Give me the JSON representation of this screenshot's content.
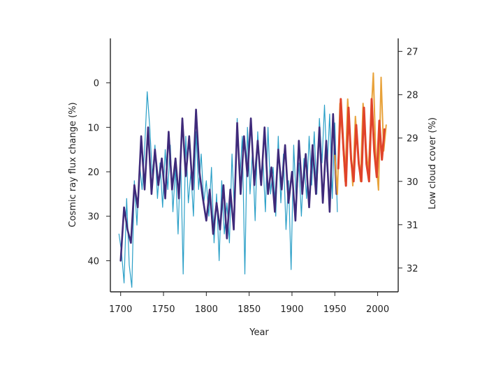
{
  "colors": {
    "axes": "#222222",
    "cosmic_ray_series": "#2a9fc7",
    "cosmic_ray_smoothed": "#3f2a7a",
    "cloud_series": "#e8a23a",
    "cloud_smoothed": "#e0432a"
  },
  "chart_data": {
    "type": "line",
    "title": "",
    "xlabel": "Year",
    "ylabel": "Cosmic ray flux change (%)",
    "y2label": "Low cloud cover (%)",
    "xlim": [
      1688,
      2024
    ],
    "ylim": [
      47,
      -10
    ],
    "y2lim": [
      32.55,
      26.7
    ],
    "y_inverted": true,
    "y2_inverted": true,
    "grid": false,
    "legend": "none",
    "x_ticks": [
      1700,
      1750,
      1800,
      1850,
      1900,
      1950,
      2000
    ],
    "y_ticks": [
      0,
      10,
      20,
      30,
      40
    ],
    "y2_ticks": [
      27,
      28,
      29,
      30,
      31,
      32
    ],
    "series": [
      {
        "axis": "left",
        "style": "thin",
        "x": [
          1698,
          1701,
          1704,
          1707,
          1710,
          1713,
          1716,
          1719,
          1722,
          1725,
          1728,
          1731,
          1734,
          1737,
          1740,
          1743,
          1746,
          1749,
          1752,
          1755,
          1758,
          1761,
          1764,
          1767,
          1770,
          1773,
          1776,
          1779,
          1782,
          1785,
          1788,
          1791,
          1794,
          1797,
          1800,
          1803,
          1806,
          1809,
          1812,
          1815,
          1818,
          1821,
          1824,
          1827,
          1830,
          1833,
          1836,
          1839,
          1842,
          1845,
          1848,
          1851,
          1854,
          1857,
          1860,
          1863,
          1866,
          1869,
          1872,
          1875,
          1878,
          1881,
          1884,
          1887,
          1890,
          1893,
          1896,
          1899,
          1902,
          1905,
          1908,
          1911,
          1914,
          1917,
          1920,
          1923,
          1926,
          1929,
          1932,
          1935,
          1938,
          1941,
          1944,
          1947,
          1950,
          1953
        ],
        "y": [
          34,
          38,
          45,
          26,
          41,
          46,
          22,
          32,
          18,
          24,
          15,
          2,
          10,
          21,
          14,
          26,
          18,
          28,
          15,
          24,
          14,
          29,
          19,
          34,
          16,
          43,
          12,
          27,
          20,
          30,
          11,
          24,
          16,
          27,
          22,
          30,
          19,
          36,
          25,
          40,
          22,
          34,
          27,
          36,
          16,
          30,
          8,
          22,
          12,
          43,
          10,
          25,
          15,
          31,
          11,
          22,
          17,
          29,
          10,
          25,
          19,
          30,
          12,
          27,
          16,
          33,
          22,
          42,
          14,
          27,
          18,
          30,
          17,
          26,
          12,
          23,
          11,
          25,
          8,
          18,
          5,
          20,
          7,
          26,
          9,
          29
        ]
      },
      {
        "axis": "left",
        "style": "thick",
        "x": [
          1700,
          1704,
          1708,
          1712,
          1716,
          1720,
          1724,
          1728,
          1732,
          1736,
          1740,
          1744,
          1748,
          1752,
          1756,
          1760,
          1764,
          1768,
          1772,
          1776,
          1780,
          1784,
          1788,
          1792,
          1796,
          1800,
          1804,
          1808,
          1812,
          1816,
          1820,
          1824,
          1828,
          1832,
          1836,
          1840,
          1844,
          1848,
          1852,
          1856,
          1860,
          1864,
          1868,
          1872,
          1876,
          1880,
          1884,
          1888,
          1892,
          1896,
          1900,
          1904,
          1908,
          1912,
          1916,
          1920,
          1924,
          1928,
          1932,
          1936,
          1940,
          1944,
          1948,
          1952
        ],
        "y": [
          40,
          28,
          33,
          36,
          23,
          28,
          12,
          24,
          10,
          25,
          15,
          23,
          17,
          26,
          11,
          24,
          17,
          26,
          8,
          21,
          12,
          24,
          6,
          20,
          26,
          31,
          24,
          34,
          27,
          33,
          23,
          35,
          24,
          33,
          9,
          25,
          12,
          21,
          8,
          23,
          13,
          23,
          10,
          25,
          19,
          29,
          15,
          24,
          14,
          27,
          20,
          31,
          13,
          25,
          16,
          28,
          14,
          25,
          10,
          27,
          13,
          29,
          7,
          25
        ]
      },
      {
        "axis": "right",
        "style": "thin",
        "x": [
          1950,
          1953,
          1956,
          1959,
          1962,
          1965,
          1968,
          1971,
          1974,
          1977,
          1980,
          1983,
          1986,
          1989,
          1992,
          1995,
          1998,
          2001,
          2004,
          2007,
          2010
        ],
        "y": [
          29.4,
          30.3,
          28.2,
          29.0,
          30.0,
          28.1,
          29.2,
          30.1,
          28.5,
          29.3,
          30.0,
          28.2,
          29.1,
          29.8,
          28.6,
          27.5,
          29.5,
          30.2,
          27.6,
          29.3,
          28.7
        ]
      },
      {
        "axis": "right",
        "style": "thick",
        "x": [
          1954,
          1957,
          1960,
          1963,
          1966,
          1969,
          1972,
          1975,
          1978,
          1981,
          1984,
          1987,
          1990,
          1993,
          1996,
          1999,
          2002,
          2005,
          2008
        ],
        "y": [
          29.7,
          28.1,
          29.2,
          30.1,
          28.3,
          29.5,
          30.0,
          28.7,
          29.6,
          30.0,
          28.3,
          29.6,
          30.0,
          28.1,
          29.3,
          29.9,
          28.6,
          29.5,
          28.8
        ]
      }
    ]
  }
}
